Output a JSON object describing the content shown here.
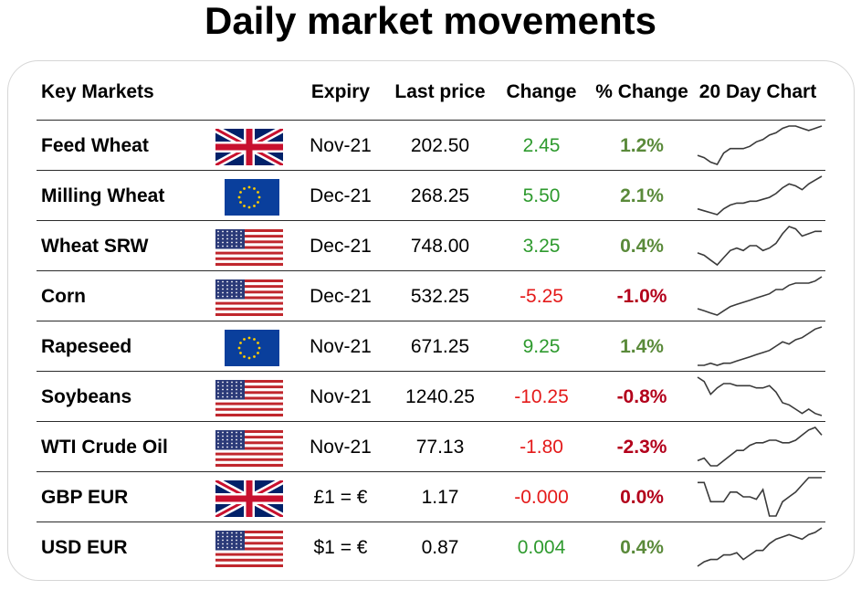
{
  "title": "Daily market movements",
  "headers": {
    "key_markets": "Key Markets",
    "expiry": "Expiry",
    "last_price": "Last price",
    "change": "Change",
    "pct_change": "% Change",
    "chart": "20 Day Chart"
  },
  "rows": [
    {
      "name": "Feed Wheat",
      "flag": "uk-flag",
      "expiry": "Nov-21",
      "last": "202.50",
      "change": "2.45",
      "pct": "1.2%",
      "dir": "up",
      "spark": [
        4,
        3,
        1,
        0,
        5,
        7,
        7,
        7,
        8,
        10,
        11,
        13,
        14,
        16,
        17,
        17,
        16,
        15,
        16,
        17
      ]
    },
    {
      "name": "Milling Wheat",
      "flag": "eu-flag",
      "expiry": "Dec-21",
      "last": "268.25",
      "change": "5.50",
      "pct": "2.1%",
      "dir": "up",
      "spark": [
        4,
        3,
        2,
        1,
        4,
        6,
        7,
        7,
        8,
        8,
        9,
        10,
        12,
        15,
        17,
        16,
        14,
        17,
        19,
        21
      ]
    },
    {
      "name": "Wheat SRW",
      "flag": "us-flag",
      "expiry": "Dec-21",
      "last": "748.00",
      "change": "3.25",
      "pct": "0.4%",
      "dir": "up",
      "spark": [
        8,
        7,
        5,
        3,
        6,
        9,
        10,
        9,
        11,
        11,
        9,
        10,
        12,
        16,
        19,
        18,
        15,
        16,
        17,
        17
      ]
    },
    {
      "name": "Corn",
      "flag": "us-flag",
      "expiry": "Dec-21",
      "last": "532.25",
      "change": "-5.25",
      "pct": "-1.0%",
      "dir": "down",
      "spark": [
        4,
        3,
        2,
        1,
        3,
        5,
        6,
        7,
        8,
        9,
        10,
        11,
        13,
        13,
        15,
        16,
        16,
        16,
        17,
        19
      ]
    },
    {
      "name": "Rapeseed",
      "flag": "eu-flag",
      "expiry": "Nov-21",
      "last": "671.25",
      "change": "9.25",
      "pct": "1.4%",
      "dir": "up",
      "spark": [
        1,
        1,
        2,
        1,
        2,
        2,
        3,
        4,
        5,
        6,
        7,
        8,
        10,
        12,
        11,
        13,
        14,
        16,
        18,
        19
      ]
    },
    {
      "name": "Soybeans",
      "flag": "us-flag",
      "expiry": "Nov-21",
      "last": "1240.25",
      "change": "-10.25",
      "pct": "-0.8%",
      "dir": "down",
      "spark": [
        19,
        17,
        11,
        14,
        16,
        16,
        15,
        15,
        15,
        14,
        14,
        15,
        12,
        7,
        6,
        4,
        2,
        4,
        2,
        1
      ]
    },
    {
      "name": "WTI Crude Oil",
      "flag": "us-flag",
      "expiry": "Nov-21",
      "last": "77.13",
      "change": "-1.80",
      "pct": "-2.3%",
      "dir": "down",
      "spark": [
        3,
        4,
        1,
        1,
        3,
        5,
        7,
        7,
        9,
        10,
        10,
        11,
        11,
        10,
        10,
        11,
        13,
        15,
        16,
        13
      ]
    },
    {
      "name": "GBP EUR",
      "flag": "uk-flag",
      "expiry": "£1 = €",
      "last": "1.17",
      "change": "-0.000",
      "pct": "0.0%",
      "dir": "down",
      "spark": [
        16,
        16,
        8,
        8,
        8,
        12,
        12,
        10,
        10,
        9,
        13,
        2,
        2,
        8,
        10,
        12,
        15,
        18,
        18,
        18
      ]
    },
    {
      "name": "USD EUR",
      "flag": "us-flag",
      "expiry": "$1 = €",
      "last": "0.87",
      "change": "0.004",
      "pct": "0.4%",
      "dir": "up",
      "spark": [
        2,
        4,
        5,
        5,
        7,
        7,
        8,
        5,
        7,
        9,
        9,
        12,
        14,
        15,
        16,
        15,
        14,
        16,
        17,
        19
      ]
    }
  ]
}
